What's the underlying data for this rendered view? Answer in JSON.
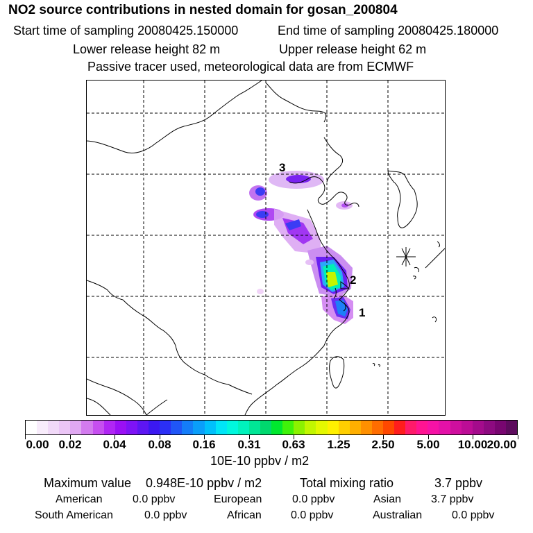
{
  "header": {
    "title": "NO2 source contributions in nested domain for gosan_200804",
    "start_label": "Start time of sampling 20080425.150000",
    "end_label": "End time of sampling 20080425.180000",
    "lower_label": "Lower release height   82 m",
    "upper_label": "Upper release height   62 m",
    "note": "Passive tracer used, meteorological data are from ECMWF"
  },
  "map": {
    "source_labels": [
      "3",
      "2",
      "1"
    ],
    "receptor_icon": "asterisk-marker-icon"
  },
  "colorbar": {
    "ticks": [
      "0.00",
      "0.02",
      "0.04",
      "0.08",
      "0.16",
      "0.31",
      "0.63",
      "1.25",
      "2.50",
      "5.00",
      "10.00",
      "20.00"
    ],
    "unit": "10E-10 ppbv / m2",
    "colors": [
      "#ffffff",
      "#f8ecfb",
      "#f1d9f8",
      "#ebc5f6",
      "#e0a8f2",
      "#d37bef",
      "#c64ff0",
      "#b026f4",
      "#9a10f5",
      "#7e13f6",
      "#5d16f3",
      "#3b18f1",
      "#2b2ff6",
      "#2056f7",
      "#147df9",
      "#0a9efa",
      "#00c0fb",
      "#00e5f7",
      "#00f7de",
      "#00f2bc",
      "#00e696",
      "#00d86e",
      "#00e82e",
      "#3ff20a",
      "#8cf100",
      "#c2f600",
      "#e4f800",
      "#fff000",
      "#ffcf00",
      "#ffaf00",
      "#ff9000",
      "#ff6d00",
      "#ff4800",
      "#ff1d1d",
      "#ff1a6a",
      "#ff1492",
      "#f612a6",
      "#e411a8",
      "#cf0f9e",
      "#bc0d96",
      "#a40b8c",
      "#8d0a80",
      "#780670",
      "#5d0b5d"
    ]
  },
  "stats": {
    "max_label": "Maximum value",
    "max_value": "0.948E-10 ppbv / m2",
    "total_label": "Total mixing ratio",
    "total_value": "3.7 ppbv",
    "rows": [
      [
        {
          "name": "American",
          "value": "0.0 ppbv"
        },
        {
          "name": "European",
          "value": "0.0 ppbv"
        },
        {
          "name": "Asian",
          "value": "3.7 ppbv"
        }
      ],
      [
        {
          "name": "South American",
          "value": "0.0 ppbv"
        },
        {
          "name": "African",
          "value": "0.0 ppbv"
        },
        {
          "name": "Australian",
          "value": "0.0 ppbv"
        }
      ]
    ]
  }
}
